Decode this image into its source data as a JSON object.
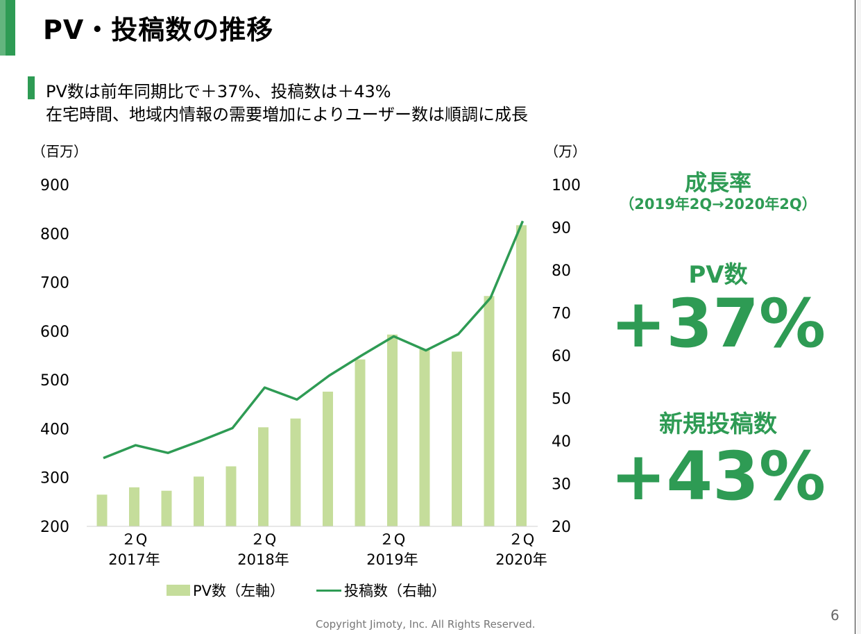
{
  "title": "PV・投稿数の推移",
  "subtitle_line1": "PV数は前年同期比で＋37%、投稿数は＋43%",
  "subtitle_line2": "在宅時間、地域内情報の需要増加によりユーザー数は順調に成長",
  "accent_color": "#2e9b54",
  "bar_color": "#c5dd9b",
  "growth_panel": {
    "title": "成長率",
    "period": "（2019年2Q→2020年2Q）",
    "pv_label": "PV数",
    "pv_value": "+37%",
    "posts_label": "新規投稿数",
    "posts_value": "+43%"
  },
  "footer": {
    "copyright": "Copyright Jimoty, Inc. All Rights Reserved.",
    "page_number": "6"
  },
  "chart_data": {
    "type": "bar",
    "left_unit": "（百万）",
    "right_unit": "（万）",
    "left_ticks": [
      "900",
      "800",
      "700",
      "600",
      "500",
      "400",
      "300",
      "200"
    ],
    "right_ticks": [
      "100",
      "90",
      "80",
      "70",
      "60",
      "50",
      "40",
      "30",
      "20"
    ],
    "ylim_left": [
      200,
      900
    ],
    "ylim_right": [
      20,
      100
    ],
    "x_labels": [
      {
        "index": 1,
        "line1": "２Q",
        "line2": "2017年"
      },
      {
        "index": 5,
        "line1": "２Q",
        "line2": "2018年"
      },
      {
        "index": 9,
        "line1": "２Q",
        "line2": "2019年"
      },
      {
        "index": 13,
        "line1": "２Q",
        "line2": "2020年"
      }
    ],
    "series": [
      {
        "name": "PV数（左軸）",
        "type": "bar",
        "axis": "left",
        "values": [
          265,
          280,
          273,
          302,
          323,
          403,
          421,
          476,
          542,
          593,
          563,
          558,
          672,
          817
        ]
      },
      {
        "name": "投稿数（右軸）",
        "type": "line",
        "axis": "right",
        "values": [
          36,
          39,
          37.2,
          40,
          43,
          52.5,
          49.7,
          55.3,
          60,
          64.5,
          61.2,
          65,
          73.5,
          91.5
        ]
      }
    ],
    "grid": false,
    "legend": "bottom"
  }
}
